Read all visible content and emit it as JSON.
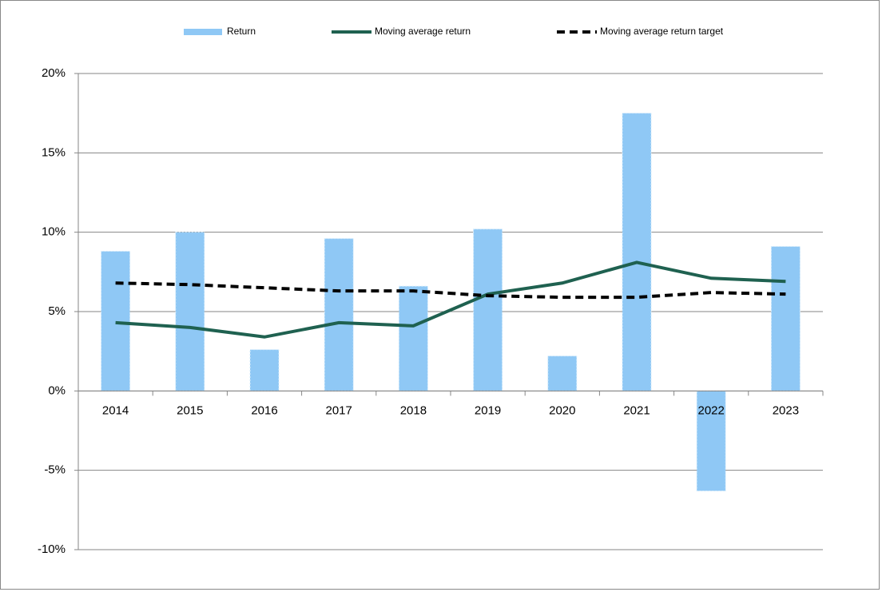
{
  "chart_data": {
    "type": "combo",
    "categories": [
      "2014",
      "2015",
      "2016",
      "2017",
      "2018",
      "2019",
      "2020",
      "2021",
      "2022",
      "2023"
    ],
    "series": [
      {
        "name": "Return",
        "type": "bar",
        "color": "#8fc8f5",
        "values": [
          8.8,
          10.0,
          2.6,
          9.6,
          6.6,
          10.2,
          2.2,
          17.5,
          -6.3,
          9.1
        ]
      },
      {
        "name": "Moving average return",
        "type": "line",
        "line_style": "solid",
        "color": "#1f6150",
        "values": [
          4.3,
          4.0,
          3.4,
          4.3,
          4.1,
          6.1,
          6.8,
          8.1,
          7.1,
          6.9
        ]
      },
      {
        "name": "Moving average return target",
        "type": "line",
        "line_style": "dashed",
        "color": "#000000",
        "values": [
          6.8,
          6.7,
          6.5,
          6.3,
          6.3,
          6.0,
          5.9,
          5.9,
          6.2,
          6.1
        ]
      }
    ],
    "ylim": [
      -10,
      20
    ],
    "yticks": [
      {
        "value": -10,
        "label": "-10%"
      },
      {
        "value": -5,
        "label": "-5%"
      },
      {
        "value": 0,
        "label": "0%"
      },
      {
        "value": 5,
        "label": "5%"
      },
      {
        "value": 10,
        "label": "10%"
      },
      {
        "value": 15,
        "label": "15%"
      },
      {
        "value": 20,
        "label": "20%"
      }
    ],
    "grid": true,
    "legend": "top"
  }
}
